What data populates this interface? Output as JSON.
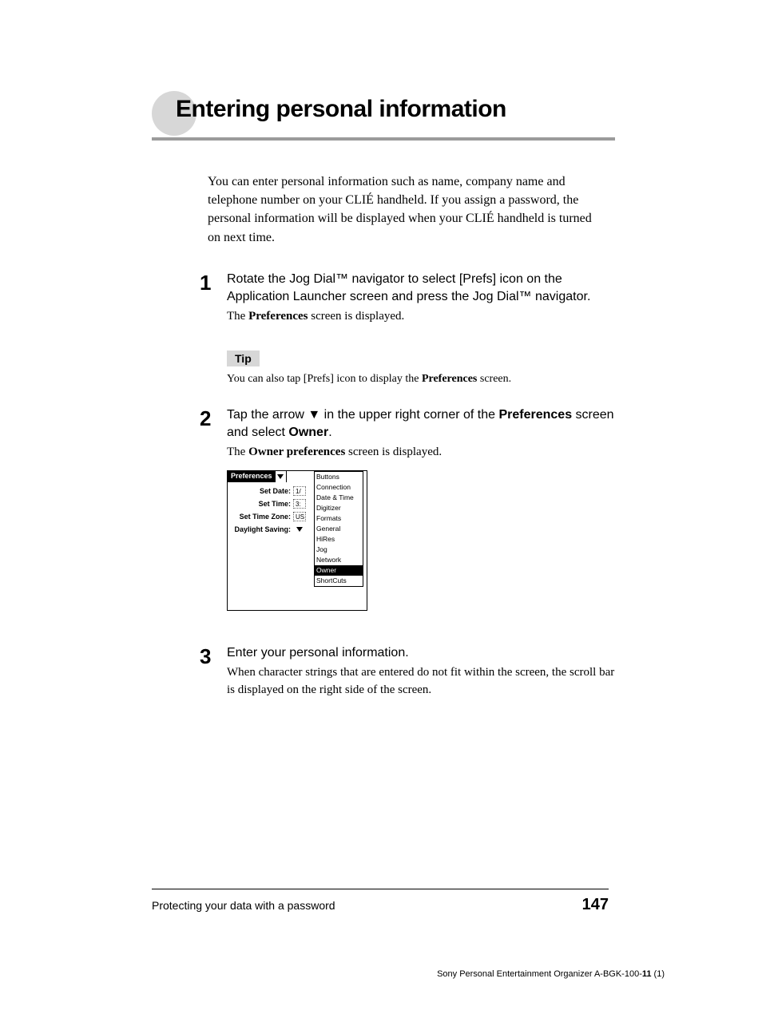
{
  "title": "Entering personal information",
  "intro": "You can enter personal information such as name, company name and telephone number on your CLIÉ handheld. If you assign a password, the personal information will be displayed when your CLIÉ handheld is turned on next time.",
  "steps": {
    "s1": {
      "num": "1",
      "main_a": "Rotate the Jog Dial™ navigator to select [Prefs] icon on the Application Launcher screen and press the Jog Dial™ navigator.",
      "sub_a": "The ",
      "sub_b": "Preferences",
      "sub_c": " screen is displayed.",
      "tip_label": "Tip",
      "tip_a": "You can also tap [Prefs] icon to display the ",
      "tip_b": "Preferences",
      "tip_c": " screen."
    },
    "s2": {
      "num": "2",
      "main_a": "Tap the arrow ",
      "main_b": " in the upper right corner of the ",
      "main_c": "Preferences",
      "main_d": " screen and select ",
      "main_e": "Owner",
      "main_f": ".",
      "sub_a": "The ",
      "sub_b": "Owner preferences",
      "sub_c": " screen is displayed."
    },
    "s3": {
      "num": "3",
      "main_a": "Enter your personal information.",
      "sub_a": "When character strings that are entered do not fit within the screen, the scroll bar is displayed on the right side of the screen."
    }
  },
  "device": {
    "title": "Preferences",
    "rows": {
      "r1": {
        "label": "Set Date:",
        "val": "1/"
      },
      "r2": {
        "label": "Set Time:",
        "val": "3:"
      },
      "r3": {
        "label": "Set Time Zone:",
        "val": "US"
      },
      "r4": {
        "label": "Daylight Saving:"
      }
    },
    "menu": {
      "m0": "Buttons",
      "m1": "Connection",
      "m2": "Date & Time",
      "m3": "Digitizer",
      "m4": "Formats",
      "m5": "General",
      "m6": "HiRes",
      "m7": "Jog",
      "m8": "Network",
      "m9": "Owner",
      "m10": "ShortCuts"
    }
  },
  "footer": {
    "left": "Protecting your data with a password",
    "page": "147"
  },
  "docid": {
    "a": "Sony Personal Entertainment Organizer  A-BGK-100-",
    "b": "11",
    "c": " (1)"
  }
}
